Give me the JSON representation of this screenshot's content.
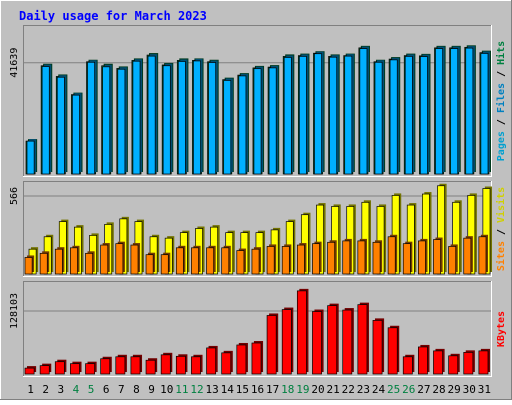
{
  "chart_data": [
    {
      "type": "bar",
      "title": "Daily usage for March 2023",
      "ylabel_parts": [
        "Pages",
        " / ",
        "Files",
        " / ",
        "Hits"
      ],
      "ylabel_colors": [
        "#00a0d0",
        "#000000",
        "#0080c0",
        "#000000",
        "#008040"
      ],
      "y_tick_label": "41639",
      "y_tick_value": 41639,
      "ylim": [
        0,
        55000
      ],
      "series": [
        {
          "name": "Hits",
          "color": "#008040",
          "values": [
            12300,
            40500,
            36500,
            29700,
            42000,
            40500,
            39500,
            42500,
            44500,
            40800,
            42500,
            42500,
            42000,
            35300,
            37000,
            39700,
            40000,
            44000,
            44300,
            45200,
            44000,
            44300,
            47200,
            42000,
            43000,
            44300,
            44200,
            47200,
            47200,
            47400,
            45400
          ]
        },
        {
          "name": "Files",
          "color": "#00b0ff",
          "values": [
            12300,
            40200,
            36200,
            29500,
            41800,
            40100,
            39200,
            42200,
            44100,
            40500,
            42100,
            42300,
            41700,
            35000,
            36700,
            39400,
            39700,
            43600,
            44000,
            45000,
            43700,
            44100,
            46900,
            41800,
            42700,
            44000,
            43900,
            46900,
            46900,
            47100,
            45100
          ]
        },
        {
          "name": "Pages",
          "color": "#0080c0",
          "values": [
            0,
            0,
            0,
            0,
            0,
            0,
            0,
            0,
            0,
            0,
            0,
            0,
            0,
            0,
            0,
            0,
            0,
            0,
            0,
            0,
            0,
            0,
            0,
            0,
            0,
            0,
            0,
            0,
            0,
            0,
            0
          ]
        }
      ]
    },
    {
      "type": "bar",
      "ylabel_parts": [
        "Sites",
        " / ",
        "Visits"
      ],
      "ylabel_colors": [
        "#ff8000",
        "#000000",
        "#d0d000"
      ],
      "y_tick_label": "566",
      "y_tick_value": 566,
      "ylim": [
        0,
        660
      ],
      "series": [
        {
          "name": "Visits",
          "color": "#ffff00",
          "values": [
            180,
            270,
            380,
            340,
            280,
            360,
            400,
            380,
            270,
            260,
            300,
            330,
            340,
            300,
            300,
            300,
            320,
            380,
            430,
            500,
            490,
            490,
            520,
            490,
            570,
            500,
            580,
            640,
            520,
            570,
            620
          ]
        },
        {
          "name": "Sites",
          "color": "#ff8000",
          "values": [
            120,
            150,
            180,
            190,
            150,
            210,
            220,
            210,
            140,
            140,
            190,
            190,
            190,
            190,
            170,
            180,
            200,
            200,
            210,
            220,
            230,
            240,
            240,
            230,
            270,
            220,
            240,
            250,
            200,
            260,
            270
          ]
        }
      ]
    },
    {
      "type": "bar",
      "ylabel_parts": [
        "KBytes"
      ],
      "ylabel_colors": [
        "#ff0000"
      ],
      "y_tick_label": "128103",
      "y_tick_value": 128103,
      "ylim": [
        0,
        185000
      ],
      "series": [
        {
          "name": "KBytes",
          "color": "#ff0000",
          "values": [
            12000,
            17000,
            25000,
            21000,
            21000,
            31000,
            35000,
            35000,
            28000,
            39000,
            36000,
            35000,
            53000,
            43000,
            59000,
            63000,
            119000,
            131000,
            169000,
            127000,
            139000,
            130000,
            141000,
            109000,
            94000,
            35000,
            55000,
            47000,
            37000,
            44000,
            47000
          ]
        }
      ]
    }
  ],
  "header": {
    "title": "Daily usage for March 2023"
  },
  "x_axis": {
    "labels": [
      "1",
      "2",
      "3",
      "4",
      "5",
      "6",
      "7",
      "8",
      "9",
      "10",
      "11",
      "12",
      "13",
      "14",
      "15",
      "16",
      "17",
      "18",
      "19",
      "20",
      "21",
      "22",
      "23",
      "24",
      "25",
      "26",
      "27",
      "28",
      "29",
      "30",
      "31"
    ],
    "weekend_days": [
      4,
      5,
      11,
      12,
      18,
      19,
      25,
      26
    ],
    "weekday_color": "#000000",
    "weekend_color": "#008040"
  },
  "colors": {
    "panel_bg": "#c0c0c0",
    "frame_dark": "#808080",
    "frame_light": "#ffffff",
    "title": "#0000ff"
  }
}
